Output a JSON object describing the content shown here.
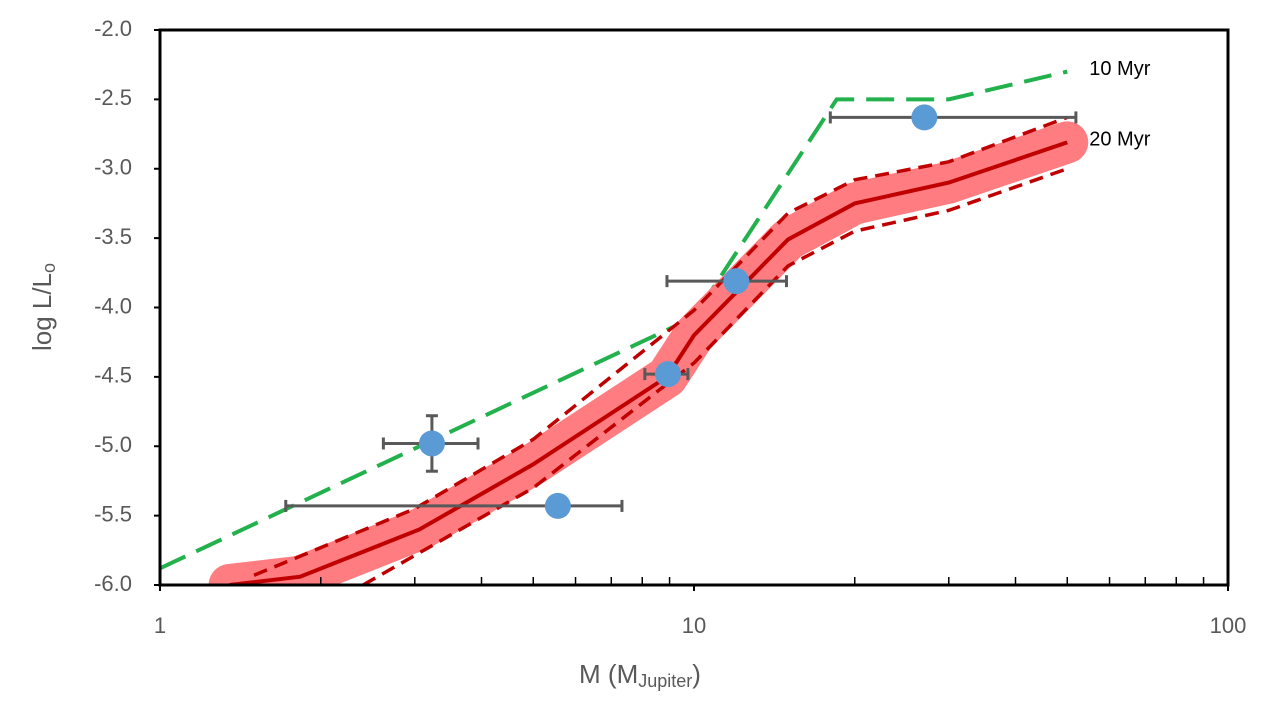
{
  "chart_data": {
    "type": "scatter",
    "xlabel": {
      "text": "M (M",
      "sub": "Jupiter",
      "end": ")"
    },
    "ylabel": {
      "text": "log L/L",
      "sub": "o"
    },
    "xlog": true,
    "xlim": [
      1,
      100
    ],
    "xticks": [
      1,
      10,
      100
    ],
    "ylim": [
      -6,
      -2
    ],
    "yticks": [
      {
        "value": -6,
        "label": "-6.0"
      },
      {
        "value": -5.5,
        "label": "-5.5"
      },
      {
        "value": -5,
        "label": "-5.0"
      },
      {
        "value": -4.5,
        "label": "-4.5"
      },
      {
        "value": -4,
        "label": "-4.0"
      },
      {
        "value": -3.5,
        "label": "-3.5"
      },
      {
        "value": -3,
        "label": "-3.0"
      },
      {
        "value": -2.5,
        "label": "-2.5"
      },
      {
        "value": -2,
        "label": "-2.0"
      }
    ],
    "points": {
      "color": "#5b9bd5",
      "error_color": "#595959",
      "x": [
        3.23,
        5.56,
        8.94,
        12.0,
        27.0
      ],
      "y": [
        -4.98,
        -5.43,
        -4.48,
        -3.81,
        -2.63
      ],
      "x_low": [
        2.62,
        1.72,
        8.09,
        8.9,
        18.0
      ],
      "x_high": [
        3.94,
        7.33,
        9.74,
        14.9,
        51.9
      ],
      "y_err": [
        0.2,
        null,
        null,
        null,
        null
      ]
    },
    "lines": [
      {
        "name": "10 Myr",
        "color": "#22b14c",
        "style": "dashed",
        "x": [
          1,
          10,
          18.5,
          30,
          50
        ],
        "y": [
          -5.88,
          -4.07,
          -2.5,
          -2.5,
          -2.3
        ]
      },
      {
        "name": "20 Myr",
        "color": "#c00000",
        "style": "solid",
        "band_color": "#ff7c80",
        "x": [
          1.35,
          1.83,
          3.06,
          5,
          8.9,
          10,
          15,
          20,
          30,
          50
        ],
        "y": [
          -6.0,
          -5.94,
          -5.6,
          -5.13,
          -4.5,
          -4.2,
          -3.51,
          -3.25,
          -3.1,
          -2.81
        ],
        "upper_x": [
          1.5,
          3,
          5,
          10,
          15,
          20,
          30,
          50
        ],
        "upper_y": [
          -5.93,
          -5.45,
          -4.95,
          -4.02,
          -3.32,
          -3.08,
          -2.95,
          -2.63
        ],
        "lower_x": [
          2.4,
          5,
          10,
          15,
          20,
          30,
          50
        ],
        "lower_y": [
          -6.0,
          -5.3,
          -4.4,
          -3.7,
          -3.45,
          -3.3,
          -3.0
        ]
      }
    ]
  }
}
